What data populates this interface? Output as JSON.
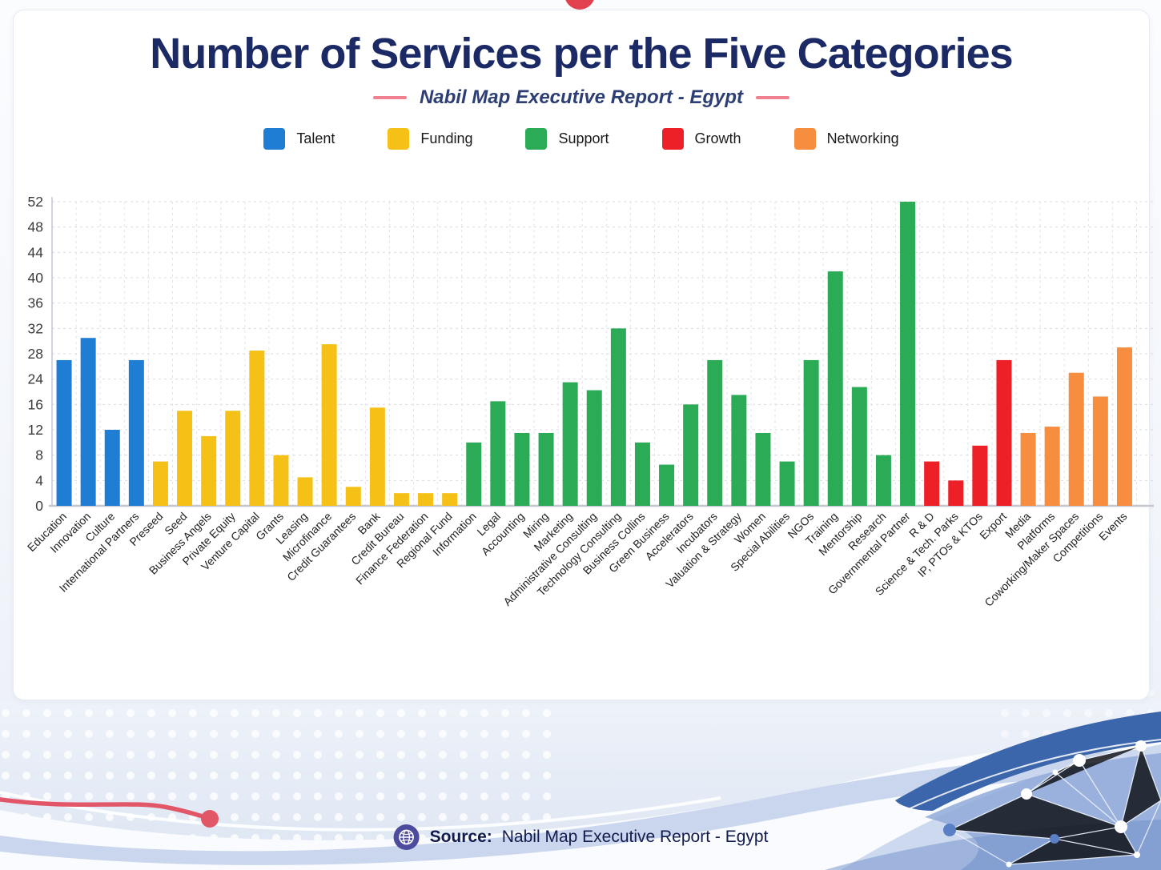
{
  "header": {
    "title": "Number of Services per the Five Categories",
    "subtitle": "Nabil Map Executive Report - Egypt"
  },
  "legend": [
    {
      "label": "Talent",
      "color": "#1f7ed3"
    },
    {
      "label": "Funding",
      "color": "#f5c116"
    },
    {
      "label": "Support",
      "color": "#2cab56"
    },
    {
      "label": "Growth",
      "color": "#ed2028"
    },
    {
      "label": "Networking",
      "color": "#f68d3f"
    }
  ],
  "footer": {
    "source_label": "Source:",
    "source_text": "Nabil Map Executive Report - Egypt"
  },
  "decor_colors": {
    "top_dot": "#e2404e",
    "red_curve": "#e25768",
    "dark_wave": "#3c66ab",
    "mid_wave": "#8fa9d8",
    "pale_wave": "#ccd9ef",
    "footer_icon": "#4d4b9e"
  },
  "chart_data": {
    "type": "bar",
    "title": "Number of Services per the Five Categories",
    "subtitle": "Nabil Map Executive Report - Egypt",
    "xlabel": "",
    "ylabel": "",
    "ylim": [
      0,
      52
    ],
    "y_ticks_as_printed": [
      0,
      4,
      8,
      12,
      16,
      24,
      28,
      32,
      36,
      40,
      44,
      48,
      52
    ],
    "axis_note": "tick labels as printed on the chart skip 20; the 13 ticks are evenly spaced",
    "grid": true,
    "legend_position": "top",
    "groups": [
      "Talent",
      "Funding",
      "Support",
      "Growth",
      "Networking"
    ],
    "bars": [
      {
        "label": "Education",
        "group": "Talent",
        "value": 27
      },
      {
        "label": "Innovation",
        "group": "Talent",
        "value": 30.5
      },
      {
        "label": "Culture",
        "group": "Talent",
        "value": 12
      },
      {
        "label": "International Partners",
        "group": "Talent",
        "value": 27
      },
      {
        "label": "Preseed",
        "group": "Funding",
        "value": 7
      },
      {
        "label": "Seed",
        "group": "Funding",
        "value": 15
      },
      {
        "label": "Business Angels",
        "group": "Funding",
        "value": 11
      },
      {
        "label": "Private Equity",
        "group": "Funding",
        "value": 15
      },
      {
        "label": "Venture Capital",
        "group": "Funding",
        "value": 28.5
      },
      {
        "label": "Grants",
        "group": "Funding",
        "value": 8
      },
      {
        "label": "Leasing",
        "group": "Funding",
        "value": 4.5
      },
      {
        "label": "Microfinance",
        "group": "Funding",
        "value": 29.5
      },
      {
        "label": "Credit Guarantees",
        "group": "Funding",
        "value": 3
      },
      {
        "label": "Bank",
        "group": "Funding",
        "value": 15.5
      },
      {
        "label": "Credit Bureau",
        "group": "Funding",
        "value": 2
      },
      {
        "label": "Finance Federation",
        "group": "Funding",
        "value": 2
      },
      {
        "label": "Regional Fund",
        "group": "Funding",
        "value": 2
      },
      {
        "label": "Information",
        "group": "Support",
        "value": 10
      },
      {
        "label": "Legal",
        "group": "Support",
        "value": 17
      },
      {
        "label": "Accounting",
        "group": "Support",
        "value": 11.5
      },
      {
        "label": "Miring",
        "group": "Support",
        "value": 11.5
      },
      {
        "label": "Marketing",
        "group": "Support",
        "value": 23
      },
      {
        "label": "Administrative Consulting",
        "group": "Support",
        "value": 20.5
      },
      {
        "label": "Technology Consulting",
        "group": "Support",
        "value": 32
      },
      {
        "label": "Business Collins",
        "group": "Support",
        "value": 10
      },
      {
        "label": "Green Business",
        "group": "Support",
        "value": 6.5
      },
      {
        "label": "Accelerators",
        "group": "Support",
        "value": 16
      },
      {
        "label": "Incubators",
        "group": "Support",
        "value": 27
      },
      {
        "label": "Valuation & Strategy",
        "group": "Support",
        "value": 19
      },
      {
        "label": "Women",
        "group": "Support",
        "value": 11.5
      },
      {
        "label": "Special Abilities",
        "group": "Support",
        "value": 7
      },
      {
        "label": "NGOs",
        "group": "Support",
        "value": 27
      },
      {
        "label": "Training",
        "group": "Support",
        "value": 41
      },
      {
        "label": "Mentorship",
        "group": "Support",
        "value": 21.5
      },
      {
        "label": "Research",
        "group": "Support",
        "value": 8
      },
      {
        "label": "Governmental Partner",
        "group": "Support",
        "value": 52
      },
      {
        "label": "R & D",
        "group": "Growth",
        "value": 7
      },
      {
        "label": "Science & Tech. Parks",
        "group": "Growth",
        "value": 4
      },
      {
        "label": "IP, PTOs & KTOs",
        "group": "Growth",
        "value": 9.5
      },
      {
        "label": "Export",
        "group": "Growth",
        "value": 27
      },
      {
        "label": "Media",
        "group": "Networking",
        "value": 11.5
      },
      {
        "label": "Platforms",
        "group": "Networking",
        "value": 12.5
      },
      {
        "label": "Coworking/Maker Spaces",
        "group": "Networking",
        "value": 25
      },
      {
        "label": "Competitions",
        "group": "Networking",
        "value": 18.5
      },
      {
        "label": "Events",
        "group": "Networking",
        "value": 29
      }
    ]
  }
}
